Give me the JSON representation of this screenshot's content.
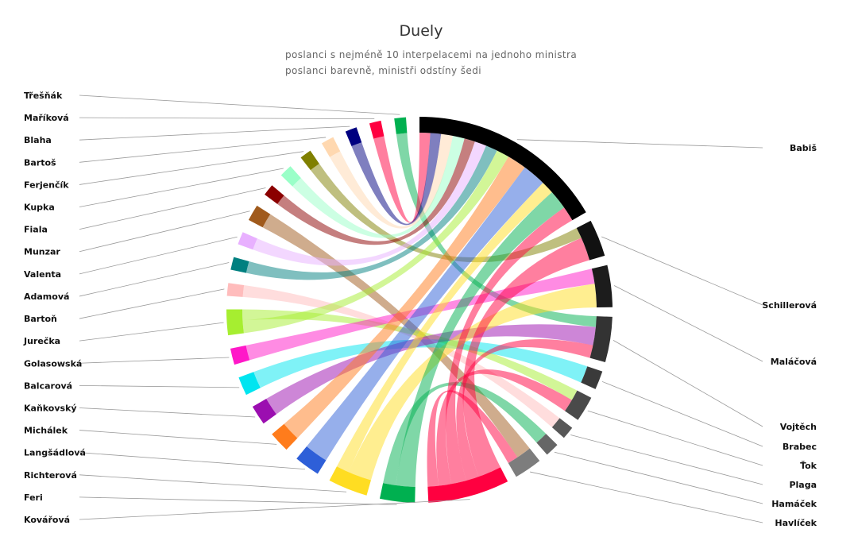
{
  "title": "Duely",
  "subtitle_lines": [
    "poslanci s nejméně 10 interpelacemi na jednoho ministra",
    "poslanci barevně, ministři odstíny šedi"
  ],
  "chart_data": {
    "type": "chord",
    "title": "Duely",
    "nodes": [
      {
        "name": "Babiš",
        "group": "minister",
        "color": "#000000"
      },
      {
        "name": "Schillerová",
        "group": "minister",
        "color": "#111111"
      },
      {
        "name": "Maláčová",
        "group": "minister",
        "color": "#1c1c1c"
      },
      {
        "name": "Vojtěch",
        "group": "minister",
        "color": "#333333"
      },
      {
        "name": "Brabec",
        "group": "minister",
        "color": "#3a3a3a"
      },
      {
        "name": "Ťok",
        "group": "minister",
        "color": "#4a4a4a"
      },
      {
        "name": "Plaga",
        "group": "minister",
        "color": "#575757"
      },
      {
        "name": "Hamáček",
        "group": "minister",
        "color": "#666666"
      },
      {
        "name": "Havlíček",
        "group": "minister",
        "color": "#7d7d7d"
      },
      {
        "name": "Kovářová",
        "group": "deputy",
        "color": "#ff0040"
      },
      {
        "name": "Feri",
        "group": "deputy",
        "color": "#00b050"
      },
      {
        "name": "Richterová",
        "group": "deputy",
        "color": "#ffdd22"
      },
      {
        "name": "Langšádlová",
        "group": "deputy",
        "color": "#2e5fd8"
      },
      {
        "name": "Michálek",
        "group": "deputy",
        "color": "#ff7c1c"
      },
      {
        "name": "Kaňkovský",
        "group": "deputy",
        "color": "#9b0eb0"
      },
      {
        "name": "Balcarová",
        "group": "deputy",
        "color": "#00e5f0"
      },
      {
        "name": "Golasowská",
        "group": "deputy",
        "color": "#ff18c8"
      },
      {
        "name": "Jurečka",
        "group": "deputy",
        "color": "#a6ee30"
      },
      {
        "name": "Bartoň",
        "group": "deputy",
        "color": "#ffbcbc"
      },
      {
        "name": "Adamová",
        "group": "deputy",
        "color": "#008080"
      },
      {
        "name": "Valenta",
        "group": "deputy",
        "color": "#e8b0ff"
      },
      {
        "name": "Munzar",
        "group": "deputy",
        "color": "#a05a1c"
      },
      {
        "name": "Fiala",
        "group": "deputy",
        "color": "#8b0000"
      },
      {
        "name": "Kupka",
        "group": "deputy",
        "color": "#9affc8"
      },
      {
        "name": "Ferjenčík",
        "group": "deputy",
        "color": "#808000"
      },
      {
        "name": "Bartoš",
        "group": "deputy",
        "color": "#ffd8b0"
      },
      {
        "name": "Blaha",
        "group": "deputy",
        "color": "#000080"
      },
      {
        "name": "Maříková",
        "group": "deputy",
        "color": "#ff0040"
      },
      {
        "name": "Třešňák",
        "group": "deputy",
        "color": "#00b050"
      }
    ],
    "links": [
      {
        "source": "Třešňák",
        "target": "Vojtěch",
        "value": 10
      },
      {
        "source": "Maříková",
        "target": "Babiš",
        "value": 10
      },
      {
        "source": "Blaha",
        "target": "Babiš",
        "value": 10
      },
      {
        "source": "Bartoš",
        "target": "Babiš",
        "value": 11
      },
      {
        "source": "Ferjenčík",
        "target": "Schillerová",
        "value": 10
      },
      {
        "source": "Kupka",
        "target": "Babiš",
        "value": 11
      },
      {
        "source": "Fiala",
        "target": "Babiš",
        "value": 10
      },
      {
        "source": "Munzar",
        "target": "Havlíček",
        "value": 14
      },
      {
        "source": "Valenta",
        "target": "Babiš",
        "value": 11
      },
      {
        "source": "Adamová",
        "target": "Babiš",
        "value": 11
      },
      {
        "source": "Bartoň",
        "target": "Plaga",
        "value": 11
      },
      {
        "source": "Jurečka",
        "target": "Babiš",
        "value": 12
      },
      {
        "source": "Jurečka",
        "target": "Ťok",
        "value": 10
      },
      {
        "source": "Golasowská",
        "target": "Maláčová",
        "value": 14
      },
      {
        "source": "Balcarová",
        "target": "Brabec",
        "value": 16
      },
      {
        "source": "Kaňkovský",
        "target": "Vojtěch",
        "value": 17
      },
      {
        "source": "Michálek",
        "target": "Babiš",
        "value": 18
      },
      {
        "source": "Langšádlová",
        "target": "Babiš",
        "value": 22
      },
      {
        "source": "Richterová",
        "target": "Maláčová",
        "value": 22
      },
      {
        "source": "Richterová",
        "target": "Babiš",
        "value": 12
      },
      {
        "source": "Feri",
        "target": "Babiš",
        "value": 18
      },
      {
        "source": "Feri",
        "target": "Hamáček",
        "value": 12
      },
      {
        "source": "Kovářová",
        "target": "Schillerová",
        "value": 22
      },
      {
        "source": "Kovářová",
        "target": "Vojtěch",
        "value": 12
      },
      {
        "source": "Kovářová",
        "target": "Babiš",
        "value": 14
      },
      {
        "source": "Kovářová",
        "target": "Ťok",
        "value": 12
      },
      {
        "source": "Kovářová",
        "target": "Havlíček",
        "value": 10
      }
    ]
  }
}
